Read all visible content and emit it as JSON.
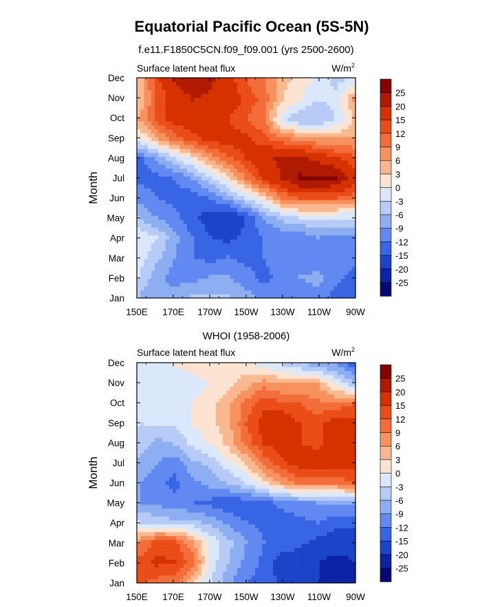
{
  "title": "Equatorial Pacific Ocean (5S-5N)",
  "colorbar": {
    "levels": [
      "25",
      "20",
      "15",
      "12",
      "9",
      "6",
      "3",
      "0",
      "-3",
      "-6",
      "-9",
      "-12",
      "-15",
      "-20",
      "-25"
    ],
    "colors": [
      "#850000",
      "#b01a00",
      "#d63200",
      "#ea4d18",
      "#f36d3a",
      "#f7925f",
      "#f9b88f",
      "#fde4d2",
      "#dbe8fb",
      "#b6ccf7",
      "#8eaef2",
      "#6189ef",
      "#3765e3",
      "#1a45c9",
      "#0b23a4",
      "#060878"
    ]
  },
  "chart_data": [
    {
      "type": "heatmap",
      "title": "f.e11.F1850C5CN.f09_f09.001 (yrs 2500-2600)",
      "left_label": "Surface latent heat flux",
      "units_base": "W/m",
      "units_exp": "2",
      "ylabel": "Month",
      "xlabel": "",
      "x_ticks": [
        "150E",
        "170E",
        "170W",
        "150W",
        "130W",
        "110W",
        "90W"
      ],
      "x_range_deg_east": [
        150,
        270
      ],
      "y_ticks": [
        "Jan",
        "Feb",
        "Mar",
        "Apr",
        "May",
        "Jun",
        "Jul",
        "Aug",
        "Sep",
        "Oct",
        "Nov",
        "Dec"
      ],
      "x_lon": [
        150,
        160,
        170,
        180,
        190,
        200,
        210,
        220,
        230,
        240,
        250,
        260,
        270
      ],
      "values": [
        [
          -6,
          -9,
          -8,
          -6,
          -6,
          -6,
          -8,
          -10,
          -11,
          -11,
          -10,
          -13,
          -13
        ],
        [
          -3,
          -8,
          -10,
          -10,
          -9,
          -9,
          -11,
          -13,
          -11,
          -9,
          -8,
          -11,
          -13
        ],
        [
          -1,
          -5,
          -9,
          -12,
          -13,
          -12,
          -13,
          -12,
          -10,
          -11,
          -12,
          -10,
          -11
        ],
        [
          -1,
          -3,
          -8,
          -12,
          -15,
          -16,
          -14,
          -12,
          -11,
          -11,
          -9,
          -10,
          -10
        ],
        [
          -6,
          -9,
          -11,
          -14,
          -17,
          -19,
          -15,
          -9,
          -5,
          -3,
          -3,
          -3,
          -3
        ],
        [
          -10,
          -12,
          -13,
          -14,
          -12,
          -8,
          -3,
          2,
          9,
          12,
          12,
          12,
          10
        ],
        [
          -13,
          -13,
          -12,
          -9,
          -4,
          2,
          9,
          16,
          20,
          26,
          26,
          25,
          17
        ],
        [
          -13,
          -9,
          -4,
          1,
          7,
          11,
          15,
          19,
          21,
          21,
          19,
          16,
          13
        ],
        [
          -1,
          5,
          10,
          14,
          16,
          17,
          16,
          13,
          10,
          8,
          6,
          6,
          6
        ],
        [
          6,
          13,
          17,
          17,
          16,
          15,
          12,
          9,
          -2,
          -6,
          -6,
          -3,
          3
        ],
        [
          3,
          12,
          17,
          20,
          19,
          18,
          14,
          11,
          3,
          0,
          -3,
          -2,
          6
        ],
        [
          3,
          14,
          20,
          23,
          21,
          17,
          12,
          9,
          4,
          2,
          -1,
          -4,
          -2
        ]
      ]
    },
    {
      "type": "heatmap",
      "title": "WHOI (1958-2006)",
      "left_label": "Surface latent heat flux",
      "units_base": "W/m",
      "units_exp": "2",
      "ylabel": "Month",
      "xlabel": "",
      "x_ticks": [
        "150E",
        "170E",
        "170W",
        "150W",
        "130W",
        "110W",
        "90W"
      ],
      "x_range_deg_east": [
        150,
        270
      ],
      "y_ticks": [
        "Jan",
        "Feb",
        "Mar",
        "Apr",
        "May",
        "Jun",
        "Jul",
        "Aug",
        "Sep",
        "Oct",
        "Nov",
        "Dec"
      ],
      "x_lon": [
        150,
        160,
        170,
        180,
        190,
        200,
        210,
        220,
        230,
        240,
        250,
        260,
        270
      ],
      "values": [
        [
          13,
          11,
          11,
          4,
          -3,
          -8,
          -12,
          -13,
          -16,
          -18,
          -20,
          -21,
          -22
        ],
        [
          13,
          16,
          15,
          11,
          -1,
          -6,
          -10,
          -13,
          -17,
          -17,
          -20,
          -22,
          -20
        ],
        [
          8,
          13,
          13,
          6,
          -1,
          -5,
          -9,
          -12,
          -13,
          -14,
          -16,
          -17,
          -18
        ],
        [
          -3,
          -4,
          -5,
          -5,
          -7,
          -10,
          -12,
          -13,
          -14,
          -13,
          -12,
          -14,
          -14
        ],
        [
          -9,
          -10,
          -11,
          -12,
          -13,
          -14,
          -14,
          -13,
          -11,
          -10,
          -9,
          -8,
          -8
        ],
        [
          -9,
          -11,
          -13,
          -10,
          -8,
          -6,
          -3,
          2,
          6,
          10,
          9,
          9,
          12
        ],
        [
          -7,
          -9,
          -11,
          -7,
          -5,
          -1,
          3,
          10,
          14,
          17,
          18,
          18,
          16
        ],
        [
          -4,
          -7,
          -6,
          -2,
          0,
          4,
          10,
          15,
          17,
          15,
          14,
          17,
          16
        ],
        [
          -3,
          -3,
          -3,
          0,
          2,
          5,
          12,
          17,
          18,
          15,
          14,
          17,
          17
        ],
        [
          -2,
          -2,
          -2,
          0,
          2,
          5,
          10,
          14,
          13,
          12,
          10,
          10,
          12
        ],
        [
          -1,
          -2,
          -2,
          -1,
          0,
          2,
          5,
          8,
          6,
          6,
          6,
          0,
          -5
        ],
        [
          -1,
          -1,
          0,
          1,
          1,
          1,
          1,
          -1,
          -3,
          -5,
          -7,
          -9,
          -13
        ]
      ]
    }
  ]
}
